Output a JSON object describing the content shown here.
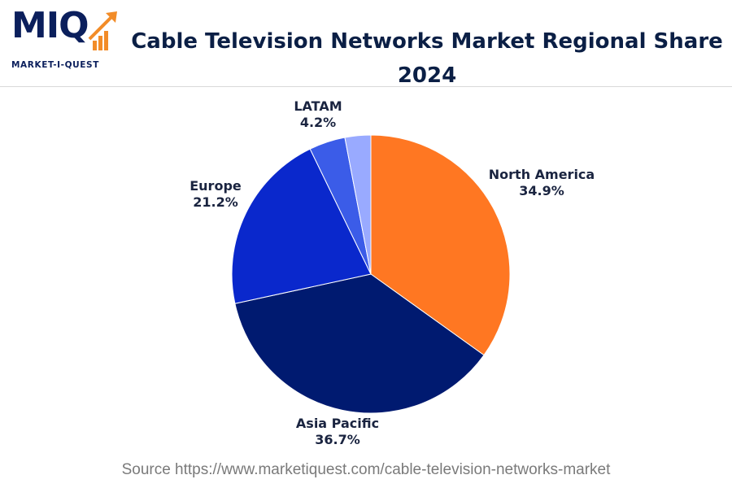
{
  "logo": {
    "mark": "MIQ",
    "tagline": "MARKET-I-QUEST"
  },
  "source": "Source https://www.marketiquest.com/cable-television-networks-market",
  "colors": {
    "north_america": "#ff7722",
    "asia_pacific": "#001a70",
    "europe": "#0a28cc",
    "latam": "#3b5ce8",
    "other": "#99aaff",
    "title": "#0b1f45",
    "accent": "#f28c28"
  },
  "chart_data": {
    "type": "pie",
    "title": "Cable Television Networks Market Regional Share 2024",
    "slices": [
      {
        "name": "North America",
        "value": 34.9,
        "label": "34.9%",
        "color": "#ff7722"
      },
      {
        "name": "Asia Pacific",
        "value": 36.7,
        "label": "36.7%",
        "color": "#001a70"
      },
      {
        "name": "Europe",
        "value": 21.2,
        "label": "21.2%",
        "color": "#0a28cc"
      },
      {
        "name": "LATAM",
        "value": 4.2,
        "label": "4.2%",
        "color": "#3b5ce8"
      },
      {
        "name": "",
        "value": 3.0,
        "label": "",
        "color": "#99aaff"
      }
    ],
    "start_angle": "top",
    "direction": "clockwise"
  }
}
